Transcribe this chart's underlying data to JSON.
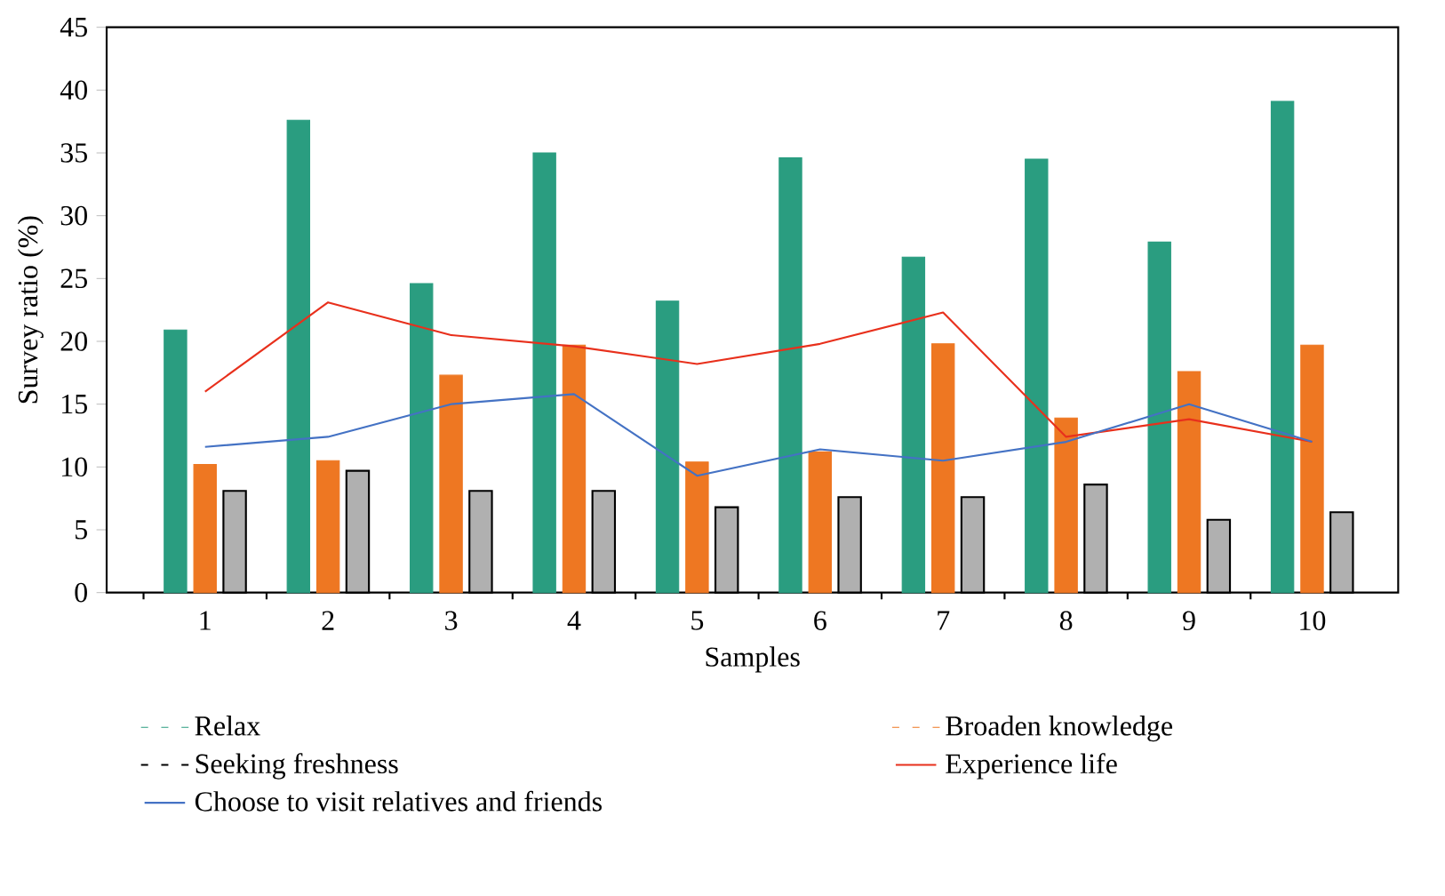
{
  "chart_data": {
    "type": "bar",
    "xlabel": "Samples",
    "ylabel": "Survey ratio (%)",
    "categories": [
      "1",
      "2",
      "3",
      "4",
      "5",
      "6",
      "7",
      "8",
      "9",
      "10"
    ],
    "ylim": [
      0,
      45
    ],
    "yticks": [
      0,
      5,
      10,
      15,
      20,
      25,
      30,
      35,
      40,
      45
    ],
    "legend": "bottom",
    "series": [
      {
        "name": "Relax",
        "color": "#2a9d80",
        "values": [
          20.9,
          37.6,
          24.6,
          35.0,
          23.2,
          34.6,
          26.7,
          34.5,
          27.9,
          39.1
        ]
      },
      {
        "name": "Broaden knowledge",
        "color": "#ee7722",
        "values": [
          10.2,
          10.5,
          17.3,
          19.7,
          10.4,
          11.2,
          19.8,
          13.9,
          17.6,
          19.7
        ]
      },
      {
        "name": "Seeking freshness",
        "color": "#b0b0b0",
        "values": [
          8.1,
          9.7,
          8.1,
          8.1,
          6.8,
          7.6,
          7.6,
          8.6,
          5.8,
          6.4
        ]
      },
      {
        "name": "Experience life",
        "type": "line",
        "color": "#e8301c",
        "values": [
          16.0,
          23.1,
          20.5,
          19.6,
          18.2,
          19.8,
          22.3,
          12.4,
          13.8,
          12.0
        ]
      },
      {
        "name": "Choose to visit relatives and friends",
        "type": "line",
        "color": "#4472c4",
        "values": [
          11.6,
          12.4,
          15.0,
          15.8,
          9.3,
          11.4,
          10.5,
          12.0,
          15.0,
          12.0
        ]
      }
    ]
  }
}
